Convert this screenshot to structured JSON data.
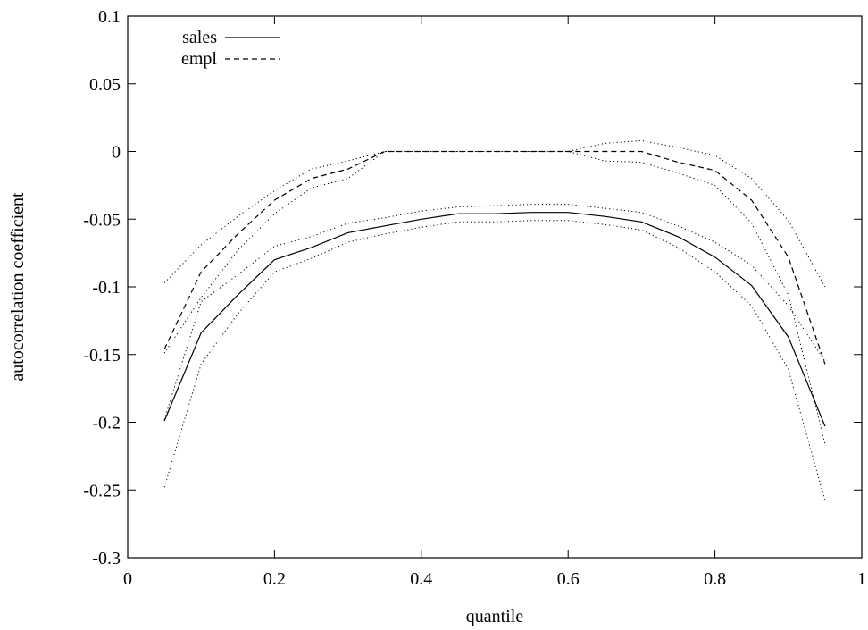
{
  "chart_data": {
    "type": "line",
    "title": "",
    "xlabel": "quantile",
    "ylabel": "autocorrelation coefficient",
    "xlim": [
      0,
      1
    ],
    "ylim": [
      -0.3,
      0.1
    ],
    "x_ticks": [
      0,
      0.2,
      0.4,
      0.6,
      0.8,
      1
    ],
    "x_tick_labels": [
      "0",
      "0.2",
      "0.4",
      "0.6",
      "0.8",
      "1"
    ],
    "y_ticks": [
      -0.3,
      -0.25,
      -0.2,
      -0.15,
      -0.1,
      -0.05,
      0,
      0.05,
      0.1
    ],
    "y_tick_labels": [
      "-0.3",
      "-0.25",
      "-0.2",
      "-0.15",
      "-0.1",
      "-0.05",
      "0",
      "0.05",
      "0.1"
    ],
    "grid": false,
    "legend_position": "top-left",
    "x": [
      0.05,
      0.1,
      0.15,
      0.2,
      0.25,
      0.3,
      0.35,
      0.4,
      0.45,
      0.5,
      0.55,
      0.6,
      0.65,
      0.7,
      0.75,
      0.8,
      0.85,
      0.9,
      0.95
    ],
    "series": [
      {
        "name": "sales",
        "style": "solid",
        "values": [
          -0.199,
          -0.134,
          -0.106,
          -0.08,
          -0.071,
          -0.06,
          -0.055,
          -0.05,
          -0.046,
          -0.046,
          -0.045,
          -0.045,
          -0.048,
          -0.052,
          -0.063,
          -0.078,
          -0.099,
          -0.137,
          -0.203
        ]
      },
      {
        "name": "empl",
        "style": "dashed",
        "values": [
          -0.146,
          -0.089,
          -0.061,
          -0.036,
          -0.02,
          -0.013,
          0.0,
          0.0,
          0.0,
          0.0,
          0.0,
          0.0,
          0.0,
          0.0,
          -0.008,
          -0.014,
          -0.036,
          -0.078,
          -0.157
        ]
      },
      {
        "style": "dotted",
        "values": [
          -0.248,
          -0.157,
          -0.12,
          -0.089,
          -0.079,
          -0.067,
          -0.061,
          -0.056,
          -0.052,
          -0.052,
          -0.051,
          -0.051,
          -0.054,
          -0.058,
          -0.071,
          -0.089,
          -0.114,
          -0.161,
          -0.258
        ]
      },
      {
        "style": "dotted",
        "values": [
          -0.198,
          -0.111,
          -0.091,
          -0.07,
          -0.063,
          -0.053,
          -0.049,
          -0.044,
          -0.041,
          -0.04,
          -0.039,
          -0.039,
          -0.042,
          -0.045,
          -0.055,
          -0.067,
          -0.084,
          -0.114,
          -0.155
        ]
      },
      {
        "style": "dotted",
        "values": [
          -0.149,
          -0.108,
          -0.073,
          -0.046,
          -0.027,
          -0.02,
          0.0,
          0.0,
          0.0,
          0.0,
          0.0,
          0.0,
          -0.007,
          -0.008,
          -0.016,
          -0.025,
          -0.053,
          -0.106,
          -0.216
        ]
      },
      {
        "style": "dotted",
        "values": [
          -0.097,
          -0.069,
          -0.048,
          -0.029,
          -0.013,
          -0.007,
          0.0,
          0.0,
          0.0,
          0.0,
          0.0,
          0.0,
          0.006,
          0.008,
          0.003,
          -0.003,
          -0.02,
          -0.051,
          -0.1
        ]
      }
    ]
  }
}
